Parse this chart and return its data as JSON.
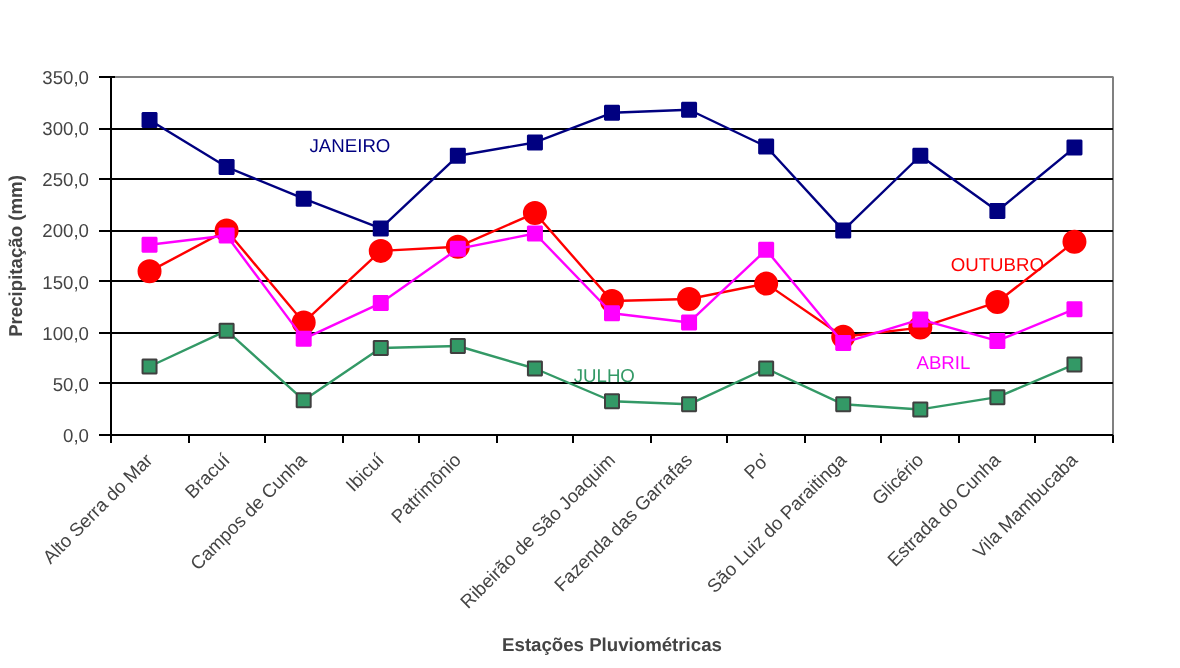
{
  "chart_data": {
    "type": "line",
    "xlabel": "Estações Pluviométricas",
    "ylabel": "Precipitação (mm)",
    "categories": [
      "Alto Serra do Mar",
      "Bracuí",
      "Campos de Cunha",
      "Ibicuí",
      "Patrimônio",
      null,
      "Ribeirão de São Joaquim",
      "Fazenda das Garrafas",
      "Po'",
      "São Luiz do Paraitinga",
      "Glicério",
      "Estrada do Cunha",
      "Vila Mambucaba"
    ],
    "series": [
      {
        "name": "JANEIRO",
        "color": "#000080",
        "marker": "square",
        "values": [
          308,
          262,
          231,
          202,
          273,
          286,
          315,
          318,
          282,
          200,
          273,
          219,
          281
        ]
      },
      {
        "name": "OUTUBRO",
        "color": "#ff0000",
        "marker": "circle",
        "values": [
          160,
          200,
          110,
          180,
          184,
          217,
          131,
          133,
          148,
          96,
          105,
          130,
          189
        ]
      },
      {
        "name": "ABRIL",
        "color": "#ff00ff",
        "marker": "square",
        "values": [
          186,
          195,
          94,
          129,
          182,
          197,
          119,
          110,
          181,
          90,
          113,
          92,
          123
        ]
      },
      {
        "name": "JULHO",
        "color": "#339966",
        "marker": "square",
        "values": [
          67,
          102,
          34,
          85,
          87,
          65,
          33,
          30,
          65,
          30,
          25,
          37,
          69
        ]
      }
    ],
    "ylim": [
      0,
      350
    ],
    "yticks": [
      {
        "value": 0,
        "label": "0,0"
      },
      {
        "value": 50,
        "label": "50,0"
      },
      {
        "value": 100,
        "label": "100,0"
      },
      {
        "value": 150,
        "label": "150,0"
      },
      {
        "value": 200,
        "label": "200,0"
      },
      {
        "value": 250,
        "label": "250,0"
      },
      {
        "value": 300,
        "label": "300,0"
      },
      {
        "value": 350,
        "label": "350,0"
      }
    ],
    "grid": "y"
  }
}
